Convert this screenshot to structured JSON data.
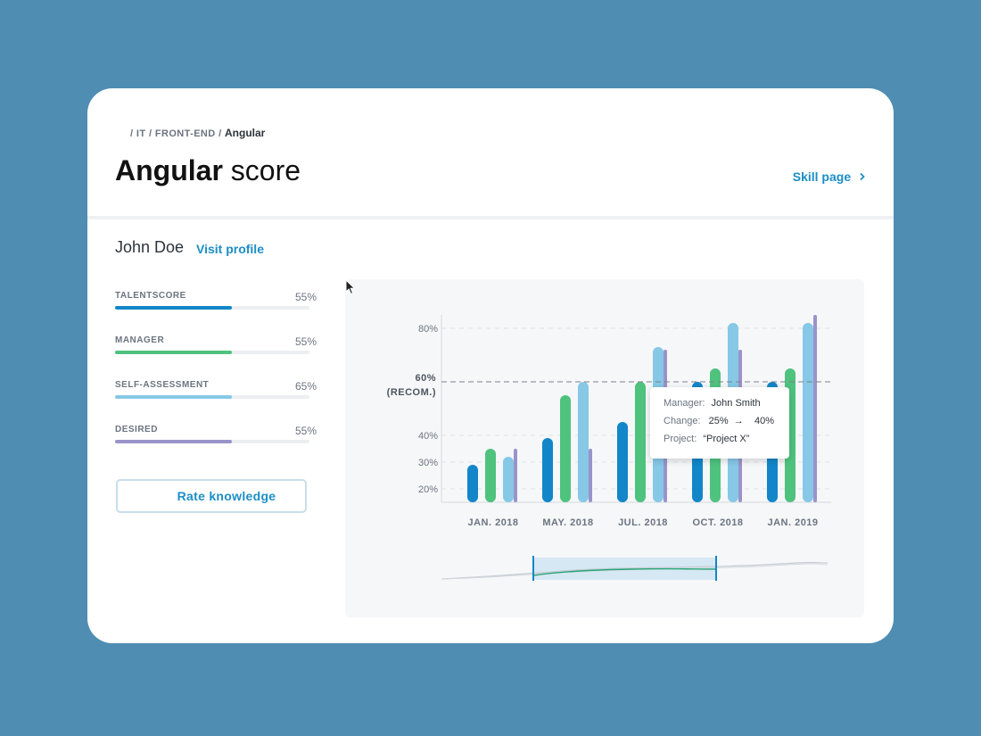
{
  "breadcrumb": {
    "prefix": "/ IT / FRONT-END /",
    "current": "Angular"
  },
  "header": {
    "title_bold": "Angular",
    "title_light": "score",
    "skill_link": "Skill page"
  },
  "user": {
    "name": "John Doe",
    "visit_link": "Visit profile"
  },
  "metrics": [
    {
      "label": "TALENTSCORE",
      "value": "55%",
      "fill_fraction": 0.6,
      "color": "#1286c8"
    },
    {
      "label": "MANAGER",
      "value": "55%",
      "fill_fraction": 0.6,
      "color": "#4fc27e"
    },
    {
      "label": "SELF-ASSESSMENT",
      "value": "65%",
      "fill_fraction": 0.6,
      "color": "#86c8e6"
    },
    {
      "label": "DESIRED",
      "value": "55%",
      "fill_fraction": 0.6,
      "color": "#9a93c9"
    }
  ],
  "rate_button": "Rate knowledge",
  "tooltip": {
    "manager_label": "Manager:",
    "manager_value": "John Smith",
    "change_label": "Change:",
    "change_from": "25%",
    "change_to": "40%",
    "project_label": "Project:",
    "project_value": "“Project X”"
  },
  "chart_data": {
    "type": "bar",
    "categories": [
      "JAN. 2018",
      "MAY. 2018",
      "JUL. 2018",
      "OCT. 2018",
      "JAN. 2019"
    ],
    "series": [
      {
        "name": "Talentscore",
        "color": "#1286c8",
        "values": [
          29,
          39,
          45,
          60,
          60
        ]
      },
      {
        "name": "Manager",
        "color": "#4fc27e",
        "values": [
          35,
          55,
          60,
          65,
          65
        ]
      },
      {
        "name": "Self-assessment",
        "color": "#86c8e6",
        "values": [
          32,
          60,
          73,
          82,
          82
        ]
      },
      {
        "name": "Desired",
        "color": "#9a93c9",
        "values": [
          35,
          35,
          72,
          72,
          85
        ]
      }
    ],
    "y_ticks": [
      "20%",
      "30%",
      "40%",
      "80%"
    ],
    "y_tick_values": [
      20,
      30,
      40,
      80
    ],
    "reference": {
      "value": 60,
      "label_top": "60%",
      "label_bottom": "(RECOM.)"
    },
    "ylim": [
      15,
      85
    ],
    "grid": true
  }
}
